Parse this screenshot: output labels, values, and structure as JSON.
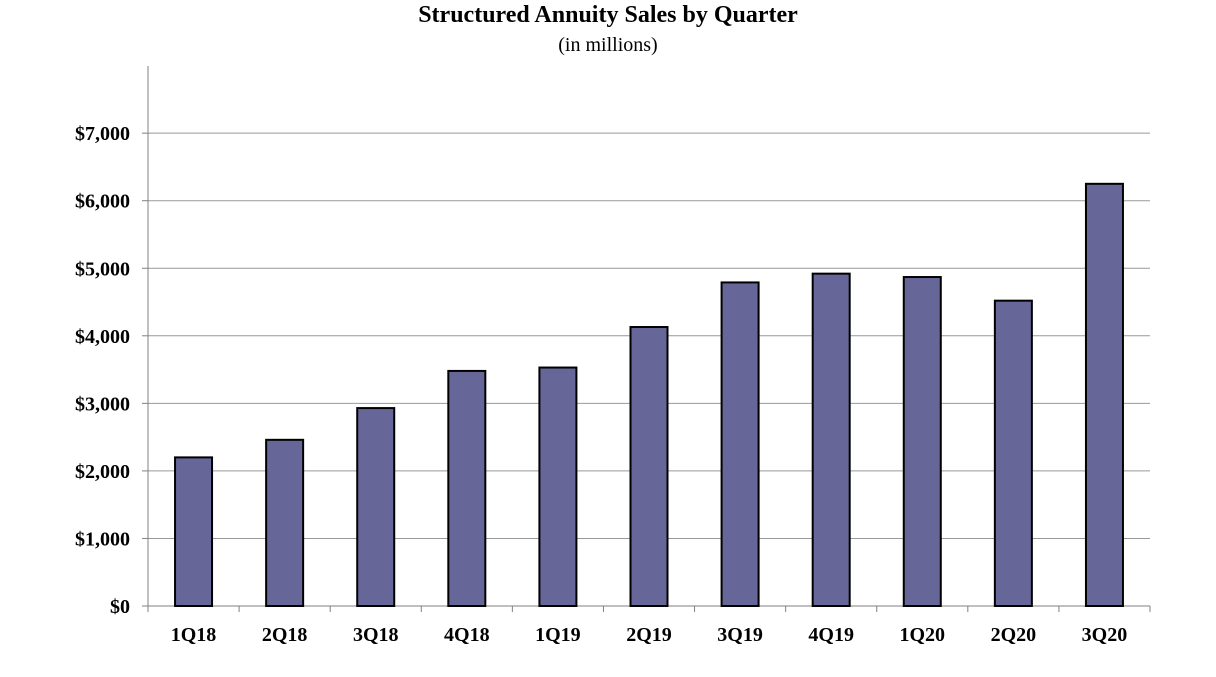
{
  "chart_data": {
    "type": "bar",
    "title": "Structured Annuity Sales by Quarter",
    "subtitle": "(in millions)",
    "categories": [
      "1Q18",
      "2Q18",
      "3Q18",
      "4Q18",
      "1Q19",
      "2Q19",
      "3Q19",
      "4Q19",
      "1Q20",
      "2Q20",
      "3Q20"
    ],
    "values": [
      2200,
      2460,
      2930,
      3480,
      3530,
      4130,
      4790,
      4920,
      4870,
      4520,
      6250
    ],
    "ylim": [
      0,
      8000
    ],
    "yticks": [
      0,
      1000,
      2000,
      3000,
      4000,
      5000,
      6000,
      7000
    ],
    "ytick_labels": [
      "$0",
      "$1,000",
      "$2,000",
      "$3,000",
      "$4,000",
      "$5,000",
      "$6,000",
      "$7,000"
    ],
    "grid": true,
    "legend": "none",
    "bar_color": "#666699",
    "bar_edge_color": "#000000",
    "grid_color": "#999999"
  }
}
